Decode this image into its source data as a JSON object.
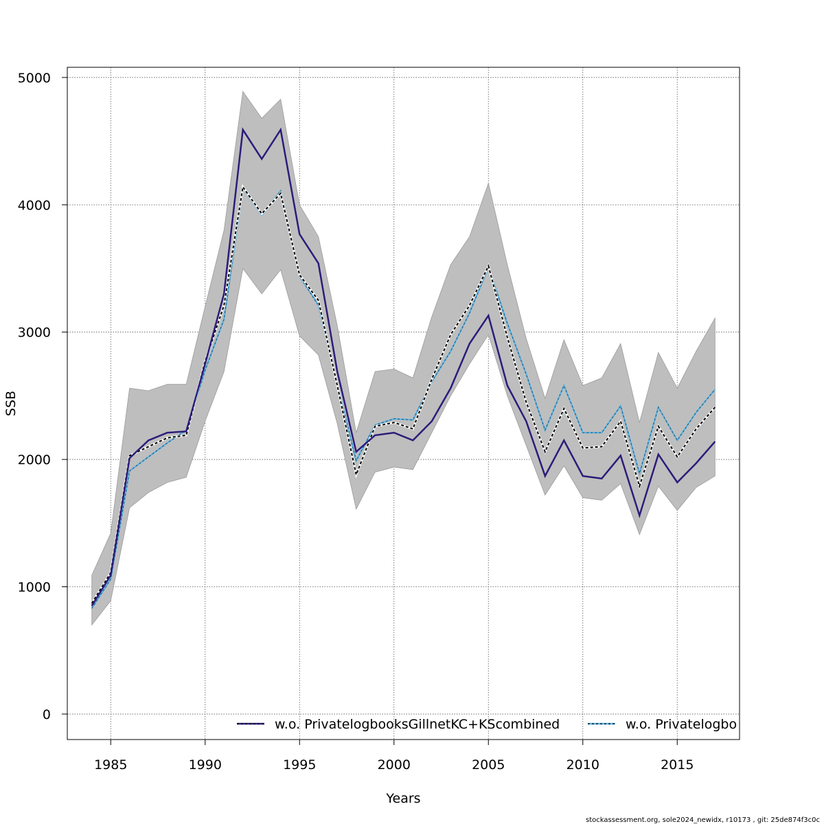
{
  "chart_data": {
    "type": "line",
    "xlabel": "Years",
    "ylabel": "SSB",
    "xlim": [
      1982.7,
      2018.3
    ],
    "ylim": [
      -200,
      5080
    ],
    "xticks": [
      1985,
      1990,
      1995,
      2000,
      2005,
      2010,
      2015
    ],
    "yticks": [
      0,
      1000,
      2000,
      3000,
      4000,
      5000
    ],
    "grid": true,
    "legend_position": "bottom",
    "x": [
      1984,
      1985,
      1986,
      1987,
      1988,
      1989,
      1990,
      1991,
      1992,
      1993,
      1994,
      1995,
      1996,
      1997,
      1998,
      1999,
      2000,
      2001,
      2002,
      2003,
      2004,
      2005,
      2006,
      2007,
      2008,
      2009,
      2010,
      2011,
      2012,
      2013,
      2014,
      2015,
      2016,
      2017
    ],
    "band": {
      "color": "#bebebe",
      "lower": [
        700,
        890,
        1620,
        1740,
        1820,
        1860,
        2300,
        2690,
        3500,
        3300,
        3490,
        2970,
        2820,
        2280,
        1610,
        1900,
        1940,
        1920,
        2210,
        2500,
        2750,
        2980,
        2500,
        2110,
        1720,
        1950,
        1700,
        1680,
        1810,
        1410,
        1790,
        1600,
        1780,
        1870
      ],
      "upper": [
        1090,
        1420,
        2560,
        2540,
        2590,
        2590,
        3200,
        3800,
        4890,
        4680,
        4830,
        4000,
        3750,
        3050,
        2210,
        2690,
        2710,
        2640,
        3120,
        3530,
        3750,
        4170,
        3530,
        2950,
        2480,
        2940,
        2580,
        2640,
        2910,
        2290,
        2840,
        2560,
        2850,
        3110
      ]
    },
    "series": [
      {
        "name": "w.o. PrivatelogbooksGillnetKC+KScombined",
        "color": "#2d1b7a",
        "values": [
          850,
          1090,
          2010,
          2150,
          2210,
          2220,
          2750,
          3300,
          4590,
          4360,
          4590,
          3770,
          3540,
          2690,
          2060,
          2190,
          2210,
          2150,
          2300,
          2560,
          2910,
          3130,
          2580,
          2300,
          1870,
          2150,
          1870,
          1850,
          2030,
          1560,
          2040,
          1820,
          1970,
          2140
        ]
      },
      {
        "name": "w.o. Privatelogbo",
        "color": "#5ab4e6",
        "values": [
          830,
          1060,
          1910,
          2020,
          2130,
          2230,
          2700,
          3100,
          4130,
          3920,
          4110,
          3440,
          3210,
          2590,
          1990,
          2270,
          2320,
          2310,
          2610,
          2850,
          3150,
          3510,
          3070,
          2670,
          2230,
          2580,
          2210,
          2210,
          2420,
          1890,
          2410,
          2150,
          2370,
          2550
        ]
      },
      {
        "color": "#000000",
        "dashed": true,
        "values": [
          870,
          1110,
          2030,
          2100,
          2170,
          2190,
          2770,
          3210,
          4140,
          3930,
          4090,
          3450,
          3250,
          2580,
          1880,
          2260,
          2290,
          2240,
          2630,
          2980,
          3210,
          3520,
          2960,
          2450,
          2060,
          2400,
          2090,
          2100,
          2300,
          1790,
          2260,
          2020,
          2240,
          2410
        ]
      }
    ],
    "footer": "stockassessment.org, sole2024_newidx, r10173 , git: 25de874f3c0c"
  }
}
